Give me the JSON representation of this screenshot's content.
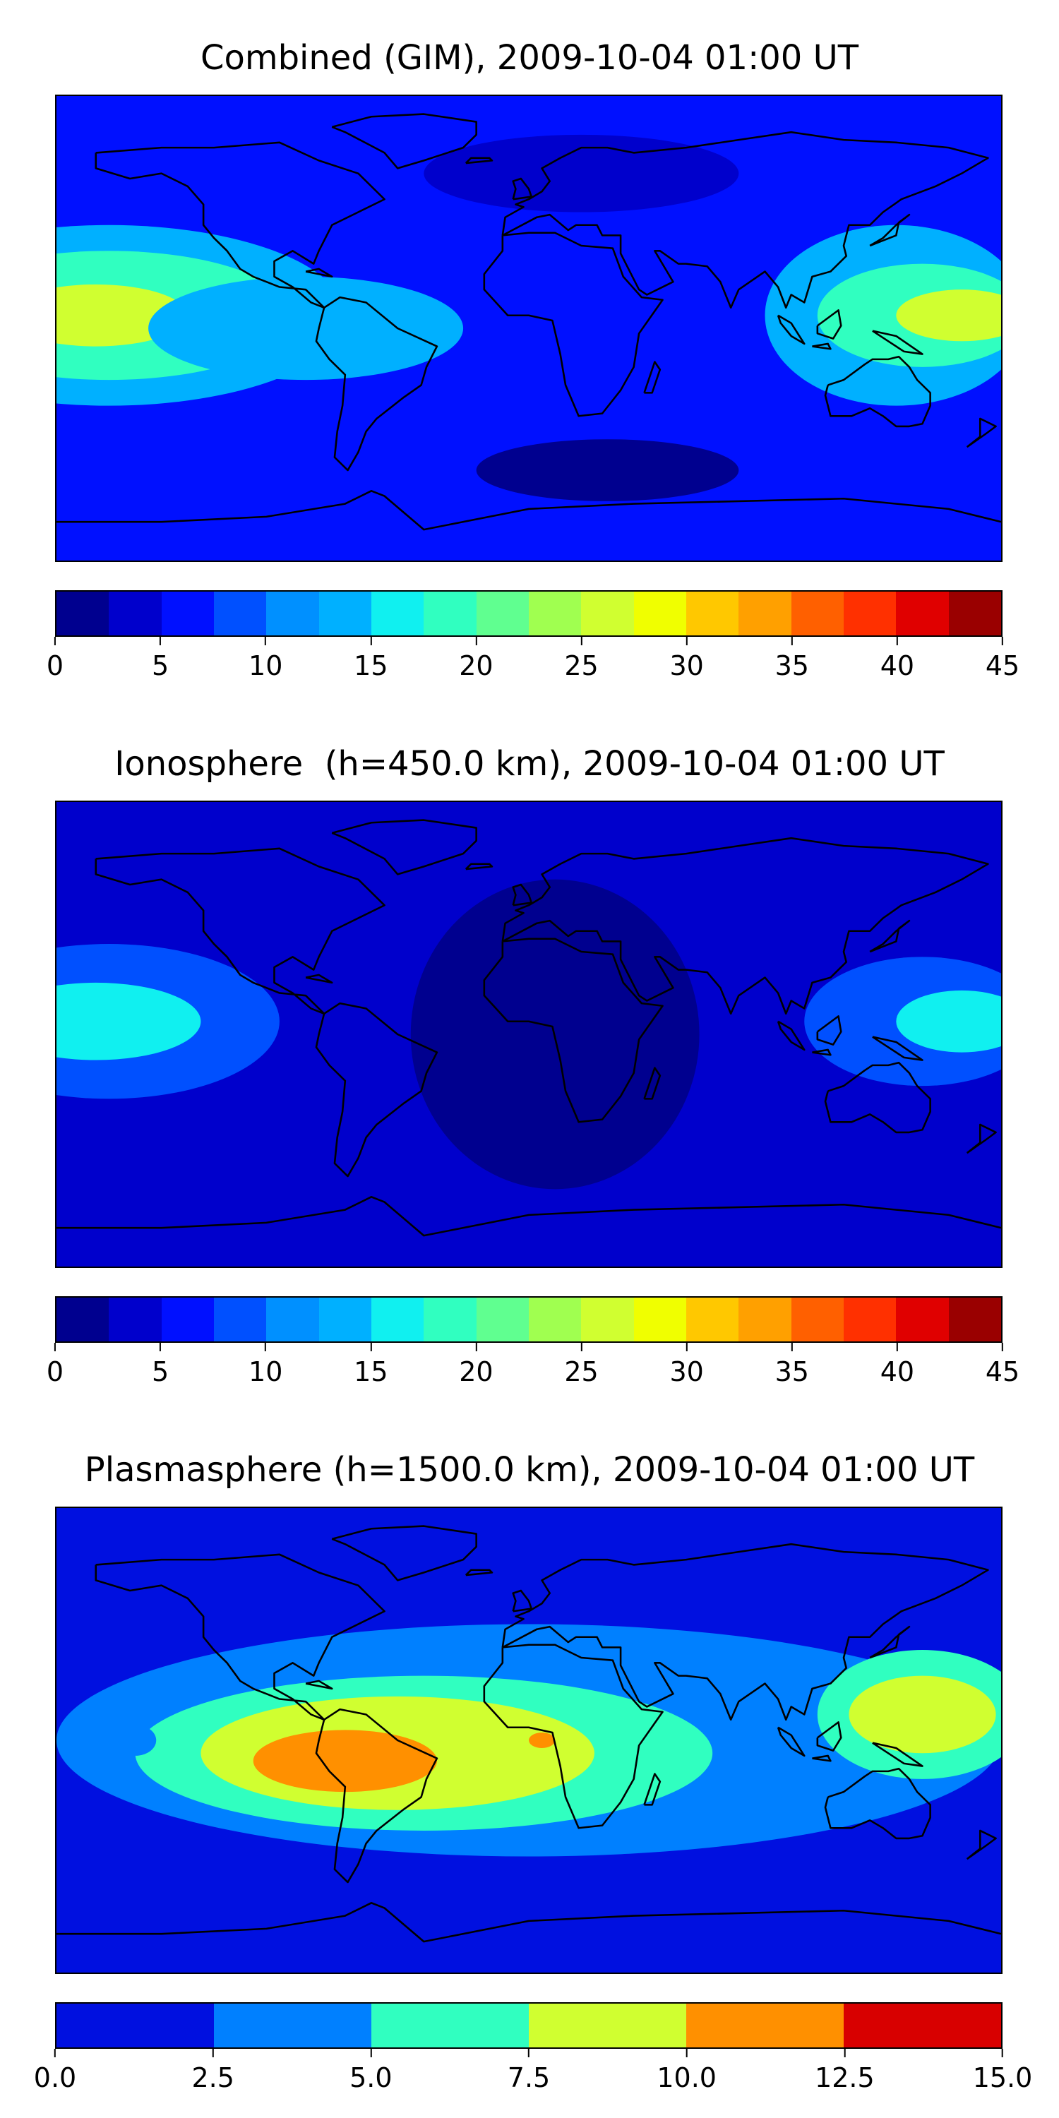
{
  "chart_data": [
    {
      "type": "heatmap",
      "title": "Combined (GIM), 2009-10-04 01:00 UT",
      "colorbar": {
        "ticks": [
          "0",
          "5",
          "10",
          "15",
          "20",
          "25",
          "30",
          "35",
          "40",
          "45"
        ],
        "range": [
          0,
          45
        ],
        "levels": [
          0,
          2.5,
          5,
          7.5,
          10,
          12.5,
          15,
          17.5,
          20,
          22.5,
          25,
          27.5,
          30,
          32.5,
          35,
          37.5,
          40,
          42.5,
          45
        ],
        "colors": [
          "#00008f",
          "#0000cc",
          "#0010ff",
          "#0050ff",
          "#0090ff",
          "#00b0ff",
          "#10f0f0",
          "#30ffc0",
          "#60ff90",
          "#a0ff50",
          "#d0ff30",
          "#f0ff00",
          "#ffc800",
          "#ffa000",
          "#ff6000",
          "#ff3000",
          "#e00000",
          "#9a0000"
        ]
      },
      "base_level_index": 2,
      "regions": [
        {
          "lon": -160,
          "lat": 5,
          "rlon": 90,
          "rlat": 35,
          "level_index": 5
        },
        {
          "lon": -160,
          "lat": 5,
          "rlon": 70,
          "rlat": 25,
          "level_index": 7
        },
        {
          "lon": -165,
          "lat": 5,
          "rlon": 35,
          "rlat": 12,
          "level_index": 10
        },
        {
          "lon": -85,
          "lat": 0,
          "rlon": 60,
          "rlat": 20,
          "level_index": 5
        },
        {
          "lon": 140,
          "lat": 5,
          "rlon": 50,
          "rlat": 35,
          "level_index": 5
        },
        {
          "lon": 150,
          "lat": 5,
          "rlon": 40,
          "rlat": 20,
          "level_index": 7
        },
        {
          "lon": 165,
          "lat": 5,
          "rlon": 25,
          "rlat": 10,
          "level_index": 10
        },
        {
          "lon": 30,
          "lat": -55,
          "rlon": 50,
          "rlat": 12,
          "level_index": 0
        },
        {
          "lon": 20,
          "lat": 60,
          "rlon": 60,
          "rlat": 15,
          "level_index": 1
        }
      ]
    },
    {
      "type": "heatmap",
      "title": "Ionosphere  (h=450.0 km), 2009-10-04 01:00 UT",
      "colorbar": {
        "ticks": [
          "0",
          "5",
          "10",
          "15",
          "20",
          "25",
          "30",
          "35",
          "40",
          "45"
        ],
        "range": [
          0,
          45
        ],
        "levels": [
          0,
          2.5,
          5,
          7.5,
          10,
          12.5,
          15,
          17.5,
          20,
          22.5,
          25,
          27.5,
          30,
          32.5,
          35,
          37.5,
          40,
          42.5,
          45
        ],
        "colors": [
          "#00008f",
          "#0000cc",
          "#0010ff",
          "#0050ff",
          "#0090ff",
          "#00b0ff",
          "#10f0f0",
          "#30ffc0",
          "#60ff90",
          "#a0ff50",
          "#d0ff30",
          "#f0ff00",
          "#ffc800",
          "#ffa000",
          "#ff6000",
          "#ff3000",
          "#e00000",
          "#9a0000"
        ]
      },
      "base_level_index": 1,
      "regions": [
        {
          "lon": -160,
          "lat": 5,
          "rlon": 65,
          "rlat": 30,
          "level_index": 3
        },
        {
          "lon": -165,
          "lat": 5,
          "rlon": 40,
          "rlat": 15,
          "level_index": 6
        },
        {
          "lon": 150,
          "lat": 5,
          "rlon": 45,
          "rlat": 25,
          "level_index": 3
        },
        {
          "lon": 165,
          "lat": 5,
          "rlon": 25,
          "rlat": 12,
          "level_index": 6
        },
        {
          "lon": 10,
          "lat": 0,
          "rlon": 55,
          "rlat": 60,
          "level_index": 0
        }
      ]
    },
    {
      "type": "heatmap",
      "title": "Plasmasphere (h=1500.0 km), 2009-10-04 01:00 UT",
      "colorbar": {
        "ticks": [
          "0.0",
          "2.5",
          "5.0",
          "7.5",
          "10.0",
          "12.5",
          "15.0"
        ],
        "range": [
          0,
          15
        ],
        "levels": [
          0,
          2.5,
          5,
          7.5,
          10,
          12.5,
          15
        ],
        "colors": [
          "#0010e0",
          "#0080ff",
          "#30ffc0",
          "#d0ff30",
          "#ff9000",
          "#d80000"
        ]
      },
      "base_level_index": 0,
      "regions": [
        {
          "lon": 0,
          "lat": 0,
          "rlon": 180,
          "rlat": 45,
          "level_index": 1
        },
        {
          "lon": -40,
          "lat": -5,
          "rlon": 110,
          "rlat": 30,
          "level_index": 2
        },
        {
          "lon": 150,
          "lat": 10,
          "rlon": 40,
          "rlat": 25,
          "level_index": 2
        },
        {
          "lon": -50,
          "lat": -5,
          "rlon": 75,
          "rlat": 22,
          "level_index": 3
        },
        {
          "lon": 150,
          "lat": 10,
          "rlon": 28,
          "rlat": 15,
          "level_index": 3
        },
        {
          "lon": -70,
          "lat": -8,
          "rlon": 35,
          "rlat": 12,
          "level_index": 4
        },
        {
          "lon": 5,
          "lat": 0,
          "rlon": 5,
          "rlat": 3,
          "level_index": 4
        },
        {
          "lon": -150,
          "lat": 0,
          "rlon": 8,
          "rlat": 6,
          "level_index": 1
        }
      ]
    }
  ]
}
